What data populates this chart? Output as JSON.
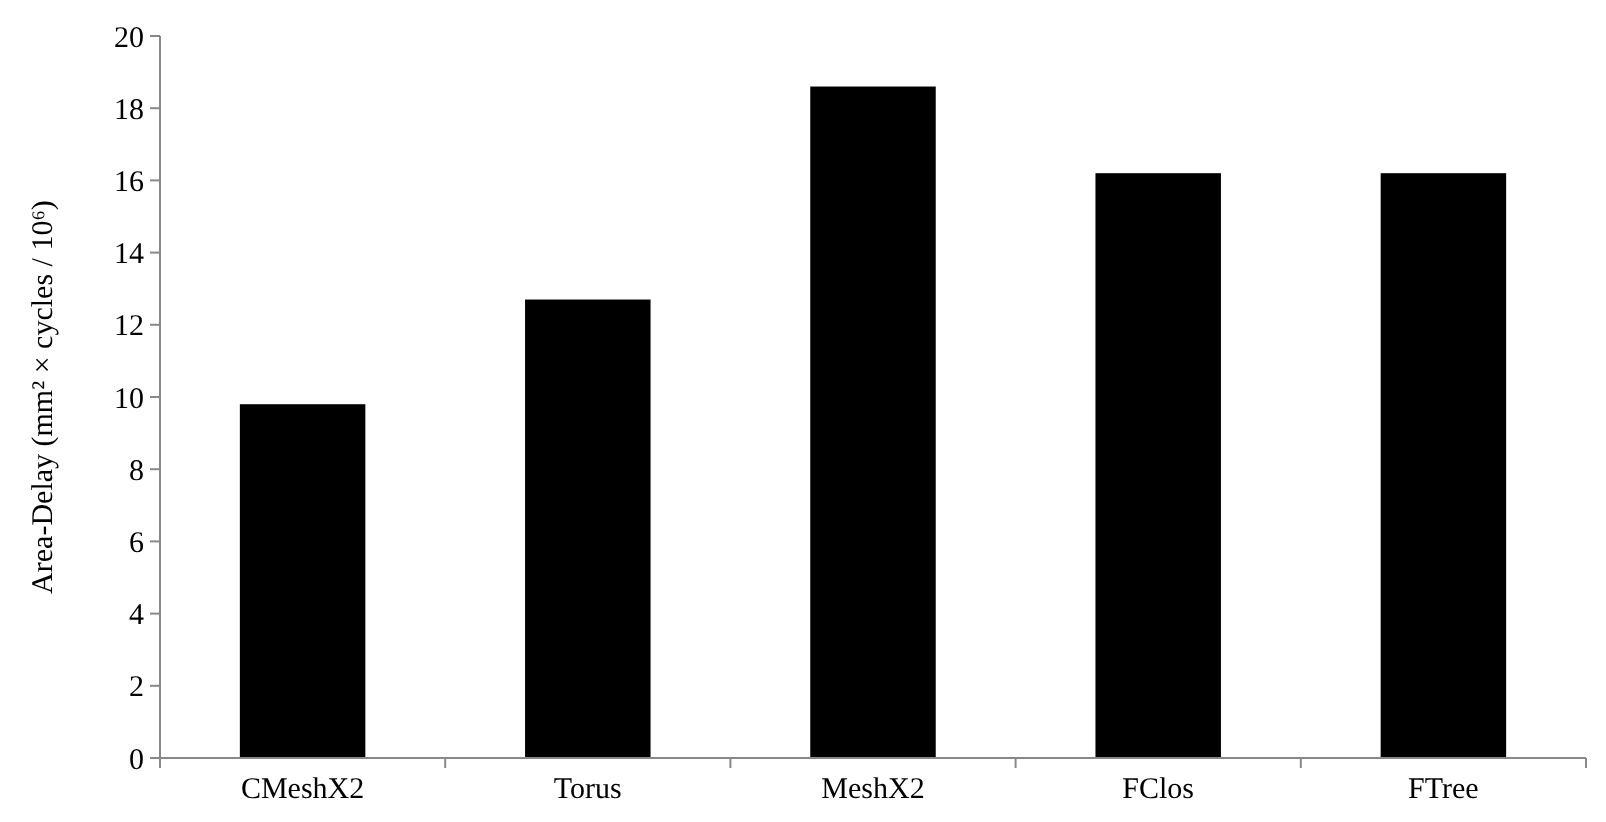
{
  "chart_data": {
    "type": "bar",
    "ylabel": "Area-Delay (mm² × cycles / 10⁶)",
    "categories": [
      "CMeshX2",
      "Torus",
      "MeshX2",
      "FClos",
      "FTree"
    ],
    "values": [
      9.8,
      12.7,
      18.6,
      16.2,
      16.2
    ],
    "color": "#000000",
    "ylim": [
      0,
      20
    ],
    "yticks": [
      0,
      2,
      4,
      6,
      8,
      10,
      12,
      14,
      16,
      18,
      20
    ],
    "grid": false
  }
}
